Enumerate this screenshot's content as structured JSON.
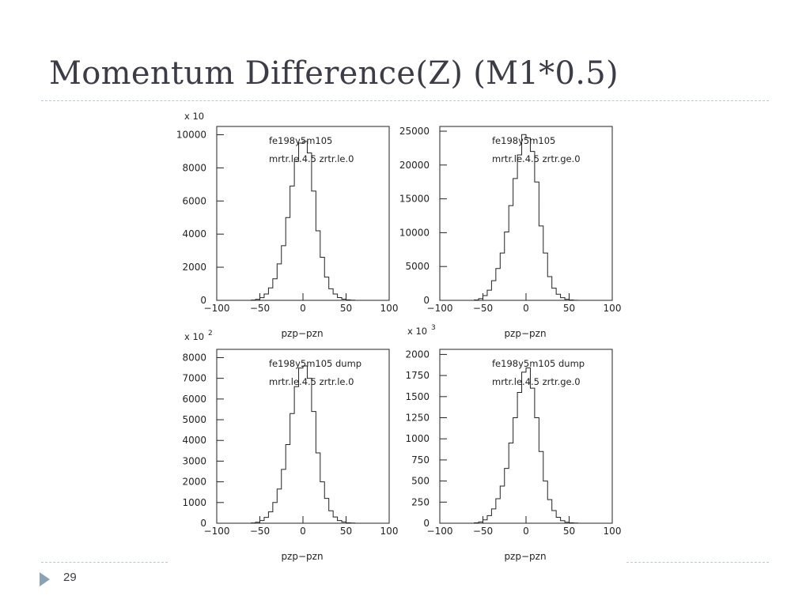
{
  "slide": {
    "title": "Momentum Difference(Z) (M1*0.5)",
    "page_number": "29"
  },
  "chart_data": [
    {
      "type": "histogram",
      "annotation_lines": [
        "fe198y5m105",
        "mrtr.le.4.5 zrtr.le.0"
      ],
      "xlabel": "pzp−pzn",
      "multiplier_label": "x 10",
      "multiplier_exp": "",
      "xlim": [
        -100,
        100
      ],
      "ylim": [
        0,
        10500
      ],
      "x_ticks": [
        -100,
        -50,
        0,
        50,
        100
      ],
      "x_tick_labels": [
        "−100",
        "−50",
        "0",
        "50",
        "100"
      ],
      "y_ticks": [
        0,
        2000,
        4000,
        6000,
        8000,
        10000
      ],
      "y_tick_labels": [
        "0",
        "2000",
        "4000",
        "6000",
        "8000",
        "10000"
      ],
      "bin_width": 5,
      "bin_starts": [
        -60,
        -55,
        -50,
        -45,
        -40,
        -35,
        -30,
        -25,
        -20,
        -15,
        -10,
        -5,
        0,
        5,
        10,
        15,
        20,
        25,
        30,
        35,
        40,
        45,
        50,
        55
      ],
      "values": [
        20,
        60,
        160,
        380,
        750,
        1300,
        2200,
        3300,
        5000,
        6900,
        8400,
        9500,
        9600,
        8900,
        6600,
        4200,
        2600,
        1400,
        700,
        380,
        170,
        70,
        30,
        10
      ]
    },
    {
      "type": "histogram",
      "annotation_lines": [
        "fe198y5m105",
        "mrtr.le.4.5 zrtr.ge.0"
      ],
      "xlabel": "pzp−pzn",
      "multiplier_label": "",
      "multiplier_exp": "",
      "xlim": [
        -100,
        100
      ],
      "ylim": [
        0,
        25700
      ],
      "x_ticks": [
        -100,
        -50,
        0,
        50,
        100
      ],
      "x_tick_labels": [
        "−100",
        "−50",
        "0",
        "50",
        "100"
      ],
      "y_ticks": [
        0,
        5000,
        10000,
        15000,
        20000,
        25000
      ],
      "y_tick_labels": [
        "0",
        "5000",
        "10000",
        "15000",
        "20000",
        "25000"
      ],
      "bin_width": 5,
      "bin_starts": [
        -60,
        -55,
        -50,
        -45,
        -40,
        -35,
        -30,
        -25,
        -20,
        -15,
        -10,
        -5,
        0,
        5,
        10,
        15,
        20,
        25,
        30,
        35,
        40,
        45,
        50,
        55
      ],
      "values": [
        60,
        250,
        700,
        1500,
        2900,
        4700,
        7000,
        10100,
        14000,
        18000,
        21500,
        24500,
        24000,
        22000,
        17500,
        11000,
        7000,
        3500,
        1800,
        900,
        400,
        150,
        60,
        20
      ]
    },
    {
      "type": "histogram",
      "annotation_lines": [
        "fe198y5m105 dump",
        "mrtr.le.4.5 zrtr.le.0"
      ],
      "xlabel": "pzp−pzn",
      "multiplier_label": "x 10",
      "multiplier_exp": "2",
      "xlim": [
        -100,
        100
      ],
      "ylim": [
        0,
        8400
      ],
      "x_ticks": [
        -100,
        -50,
        0,
        50,
        100
      ],
      "x_tick_labels": [
        "−100",
        "−50",
        "0",
        "50",
        "100"
      ],
      "y_ticks": [
        0,
        1000,
        2000,
        3000,
        4000,
        5000,
        6000,
        7000,
        8000
      ],
      "y_tick_labels": [
        "0",
        "1000",
        "2000",
        "3000",
        "4000",
        "5000",
        "6000",
        "7000",
        "8000"
      ],
      "bin_width": 5,
      "bin_starts": [
        -60,
        -55,
        -50,
        -45,
        -40,
        -35,
        -30,
        -25,
        -20,
        -15,
        -10,
        -5,
        0,
        5,
        10,
        15,
        20,
        25,
        30,
        35,
        40,
        45,
        50,
        55
      ],
      "values": [
        15,
        50,
        130,
        280,
        550,
        1000,
        1650,
        2600,
        3800,
        5300,
        6600,
        7500,
        7600,
        7000,
        5400,
        3400,
        2000,
        1200,
        600,
        300,
        130,
        60,
        20,
        8
      ]
    },
    {
      "type": "histogram",
      "annotation_lines": [
        "fe198y5m105 dump",
        "mrtr.le.4.5 zrtr.ge.0"
      ],
      "xlabel": "pzp−pzn",
      "multiplier_label": "x 10",
      "multiplier_exp": "3",
      "xlim": [
        -100,
        100
      ],
      "ylim": [
        0,
        2060
      ],
      "x_ticks": [
        -100,
        -50,
        0,
        50,
        100
      ],
      "x_tick_labels": [
        "−100",
        "−50",
        "0",
        "50",
        "100"
      ],
      "y_ticks": [
        0,
        250,
        500,
        750,
        1000,
        1250,
        1500,
        1750,
        2000
      ],
      "y_tick_labels": [
        "0",
        "250",
        "500",
        "750",
        "1000",
        "1250",
        "1500",
        "1750",
        "2000"
      ],
      "bin_width": 5,
      "bin_starts": [
        -60,
        -55,
        -50,
        -45,
        -40,
        -35,
        -30,
        -25,
        -20,
        -15,
        -10,
        -5,
        0,
        5,
        10,
        15,
        20,
        25,
        30,
        35,
        40,
        45,
        50,
        55
      ],
      "values": [
        5,
        15,
        40,
        90,
        170,
        290,
        440,
        650,
        950,
        1250,
        1550,
        1790,
        1840,
        1600,
        1250,
        850,
        500,
        280,
        150,
        70,
        30,
        12,
        5,
        2
      ]
    }
  ]
}
